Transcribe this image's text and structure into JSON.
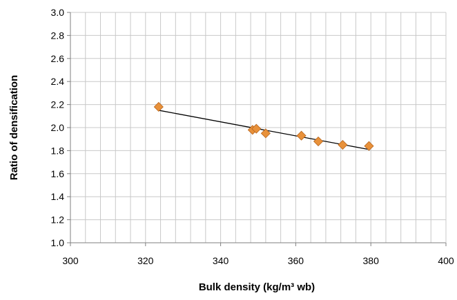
{
  "chart_data": {
    "type": "scatter",
    "title": "",
    "xlabel": "Bulk density (kg/m³ wb)",
    "ylabel": "Ratio of densification",
    "xlim": [
      300,
      400
    ],
    "ylim": [
      1.0,
      3.0
    ],
    "x_major_ticks": [
      300,
      320,
      340,
      360,
      380,
      400
    ],
    "y_major_ticks": [
      1.0,
      1.2,
      1.4,
      1.6,
      1.8,
      2.0,
      2.2,
      2.4,
      2.6,
      2.8,
      3.0
    ],
    "x_tick_labels": [
      "300",
      "320",
      "340",
      "360",
      "380",
      "400"
    ],
    "y_tick_labels": [
      "1.0",
      "1.2",
      "1.4",
      "1.6",
      "1.8",
      "2.0",
      "2.2",
      "2.4",
      "2.6",
      "2.8",
      "3.0"
    ],
    "x_minor_step": 4,
    "grid": true,
    "marker_shape": "diamond",
    "marker_color": "#E8913A",
    "marker_edge_color": "#B8661E",
    "trendline_color": "#000000",
    "series": [
      {
        "points": [
          {
            "x": 323.5,
            "y": 2.18
          },
          {
            "x": 348.5,
            "y": 1.98
          },
          {
            "x": 349.5,
            "y": 1.99
          },
          {
            "x": 352.0,
            "y": 1.95
          },
          {
            "x": 361.5,
            "y": 1.93
          },
          {
            "x": 366.0,
            "y": 1.88
          },
          {
            "x": 372.5,
            "y": 1.85
          },
          {
            "x": 379.5,
            "y": 1.84
          }
        ]
      }
    ],
    "trendline": {
      "type": "linear",
      "x": [
        323.5,
        379.5
      ],
      "y": [
        2.15,
        1.81
      ]
    }
  }
}
